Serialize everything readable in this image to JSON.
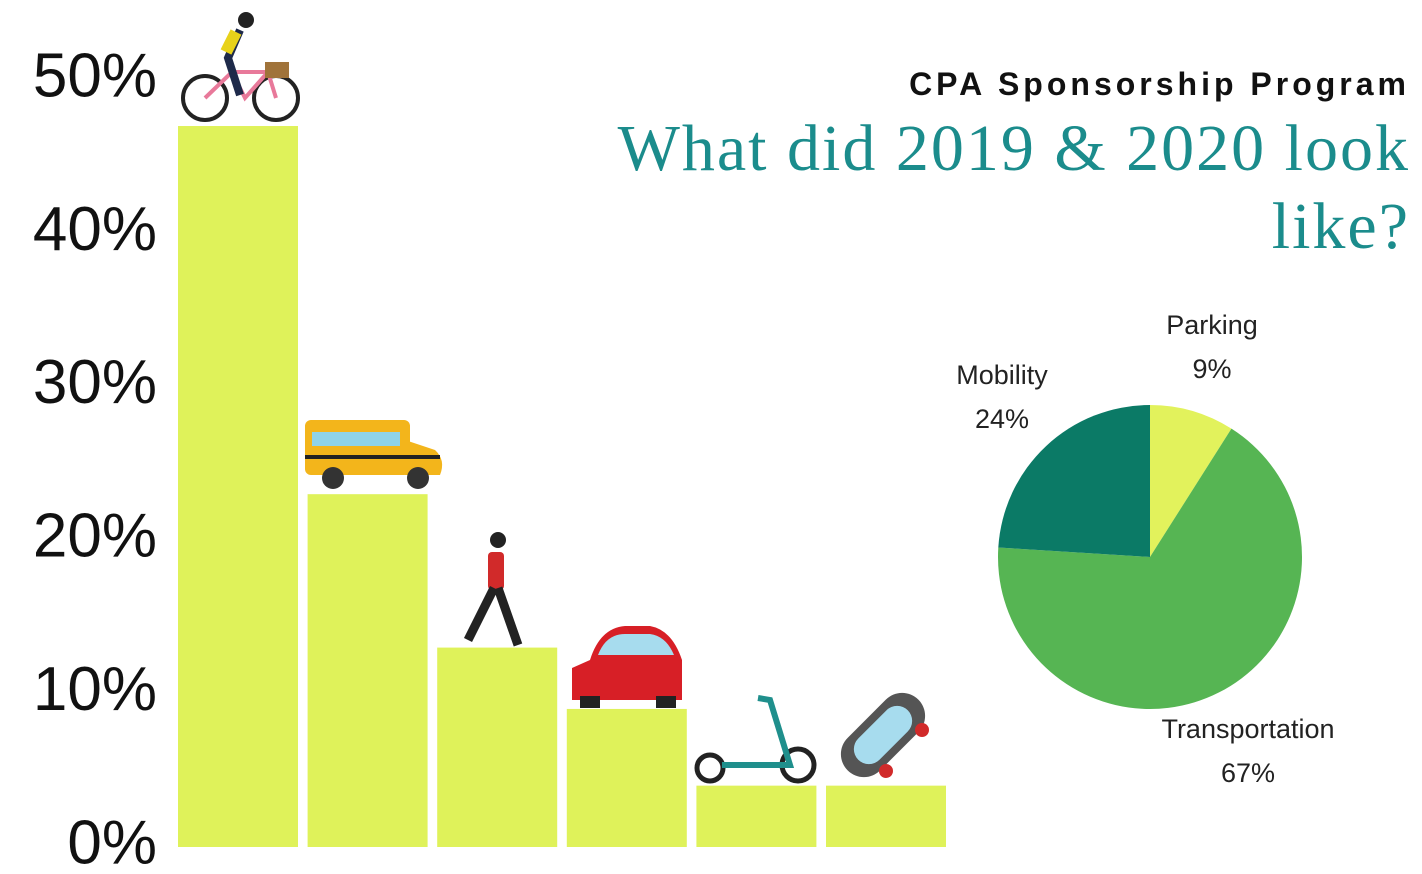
{
  "chart_data": [
    {
      "type": "bar",
      "categories": [
        null,
        null,
        null,
        null,
        null,
        null
      ],
      "values": [
        47,
        23,
        13,
        9,
        4,
        4
      ],
      "color": "#dff25a",
      "ylim": [
        0,
        50
      ],
      "yticks": [
        {
          "value": 0,
          "label": "0%"
        },
        {
          "value": 10,
          "label": "10%"
        },
        {
          "value": 20,
          "label": "20%"
        },
        {
          "value": 30,
          "label": "30%"
        },
        {
          "value": 40,
          "label": "40%"
        },
        {
          "value": 50,
          "label": "50%"
        }
      ],
      "grid": false
    },
    {
      "type": "pie",
      "subtitle": "CPA Sponsorship Program",
      "title": "What did 2019 & 2020 look like?",
      "categories": [
        "Parking",
        "Transportation",
        "Mobility"
      ],
      "values": [
        9,
        67,
        24
      ],
      "value_labels": [
        "9%",
        "67%",
        "24%"
      ],
      "colors": [
        "#e2f25c",
        "#56b553",
        "#0b7a66"
      ]
    }
  ]
}
